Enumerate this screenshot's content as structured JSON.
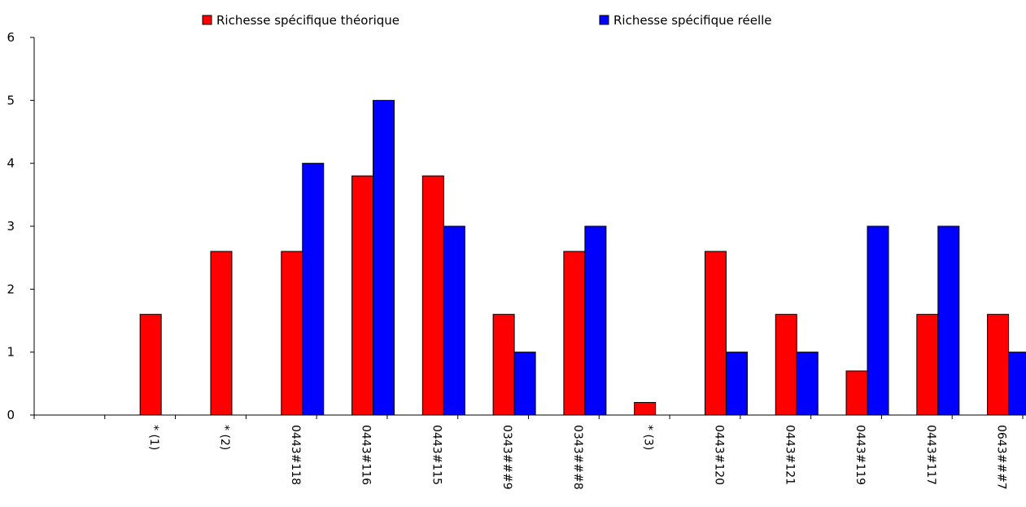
{
  "chart_data": {
    "type": "bar",
    "title": "",
    "xlabel": "",
    "ylabel": "",
    "ylim": [
      0,
      6
    ],
    "yticks": [
      "0",
      "1",
      "2",
      "3",
      "4",
      "5",
      "6"
    ],
    "grid": false,
    "legend_position": "top",
    "categories": [
      "",
      "* (1)",
      "* (2)",
      "0443#118",
      "0443#116",
      "0443#115",
      "0343###9",
      "0343###8",
      "* (3)",
      "0443#120",
      "0443#121",
      "0443#119",
      "0443#117",
      "0643###7"
    ],
    "series": [
      {
        "name": "Richesse spécifique théorique",
        "color": "#ff0000",
        "values": [
          null,
          1.6,
          2.6,
          2.6,
          3.8,
          3.8,
          1.6,
          2.6,
          0.2,
          2.6,
          1.6,
          0.7,
          1.6,
          1.6
        ]
      },
      {
        "name": "Richesse spécifique réelle",
        "color": "#0000ff",
        "values": [
          null,
          null,
          null,
          4,
          5,
          3,
          1,
          3,
          null,
          1,
          1,
          3,
          3,
          1
        ]
      }
    ]
  }
}
